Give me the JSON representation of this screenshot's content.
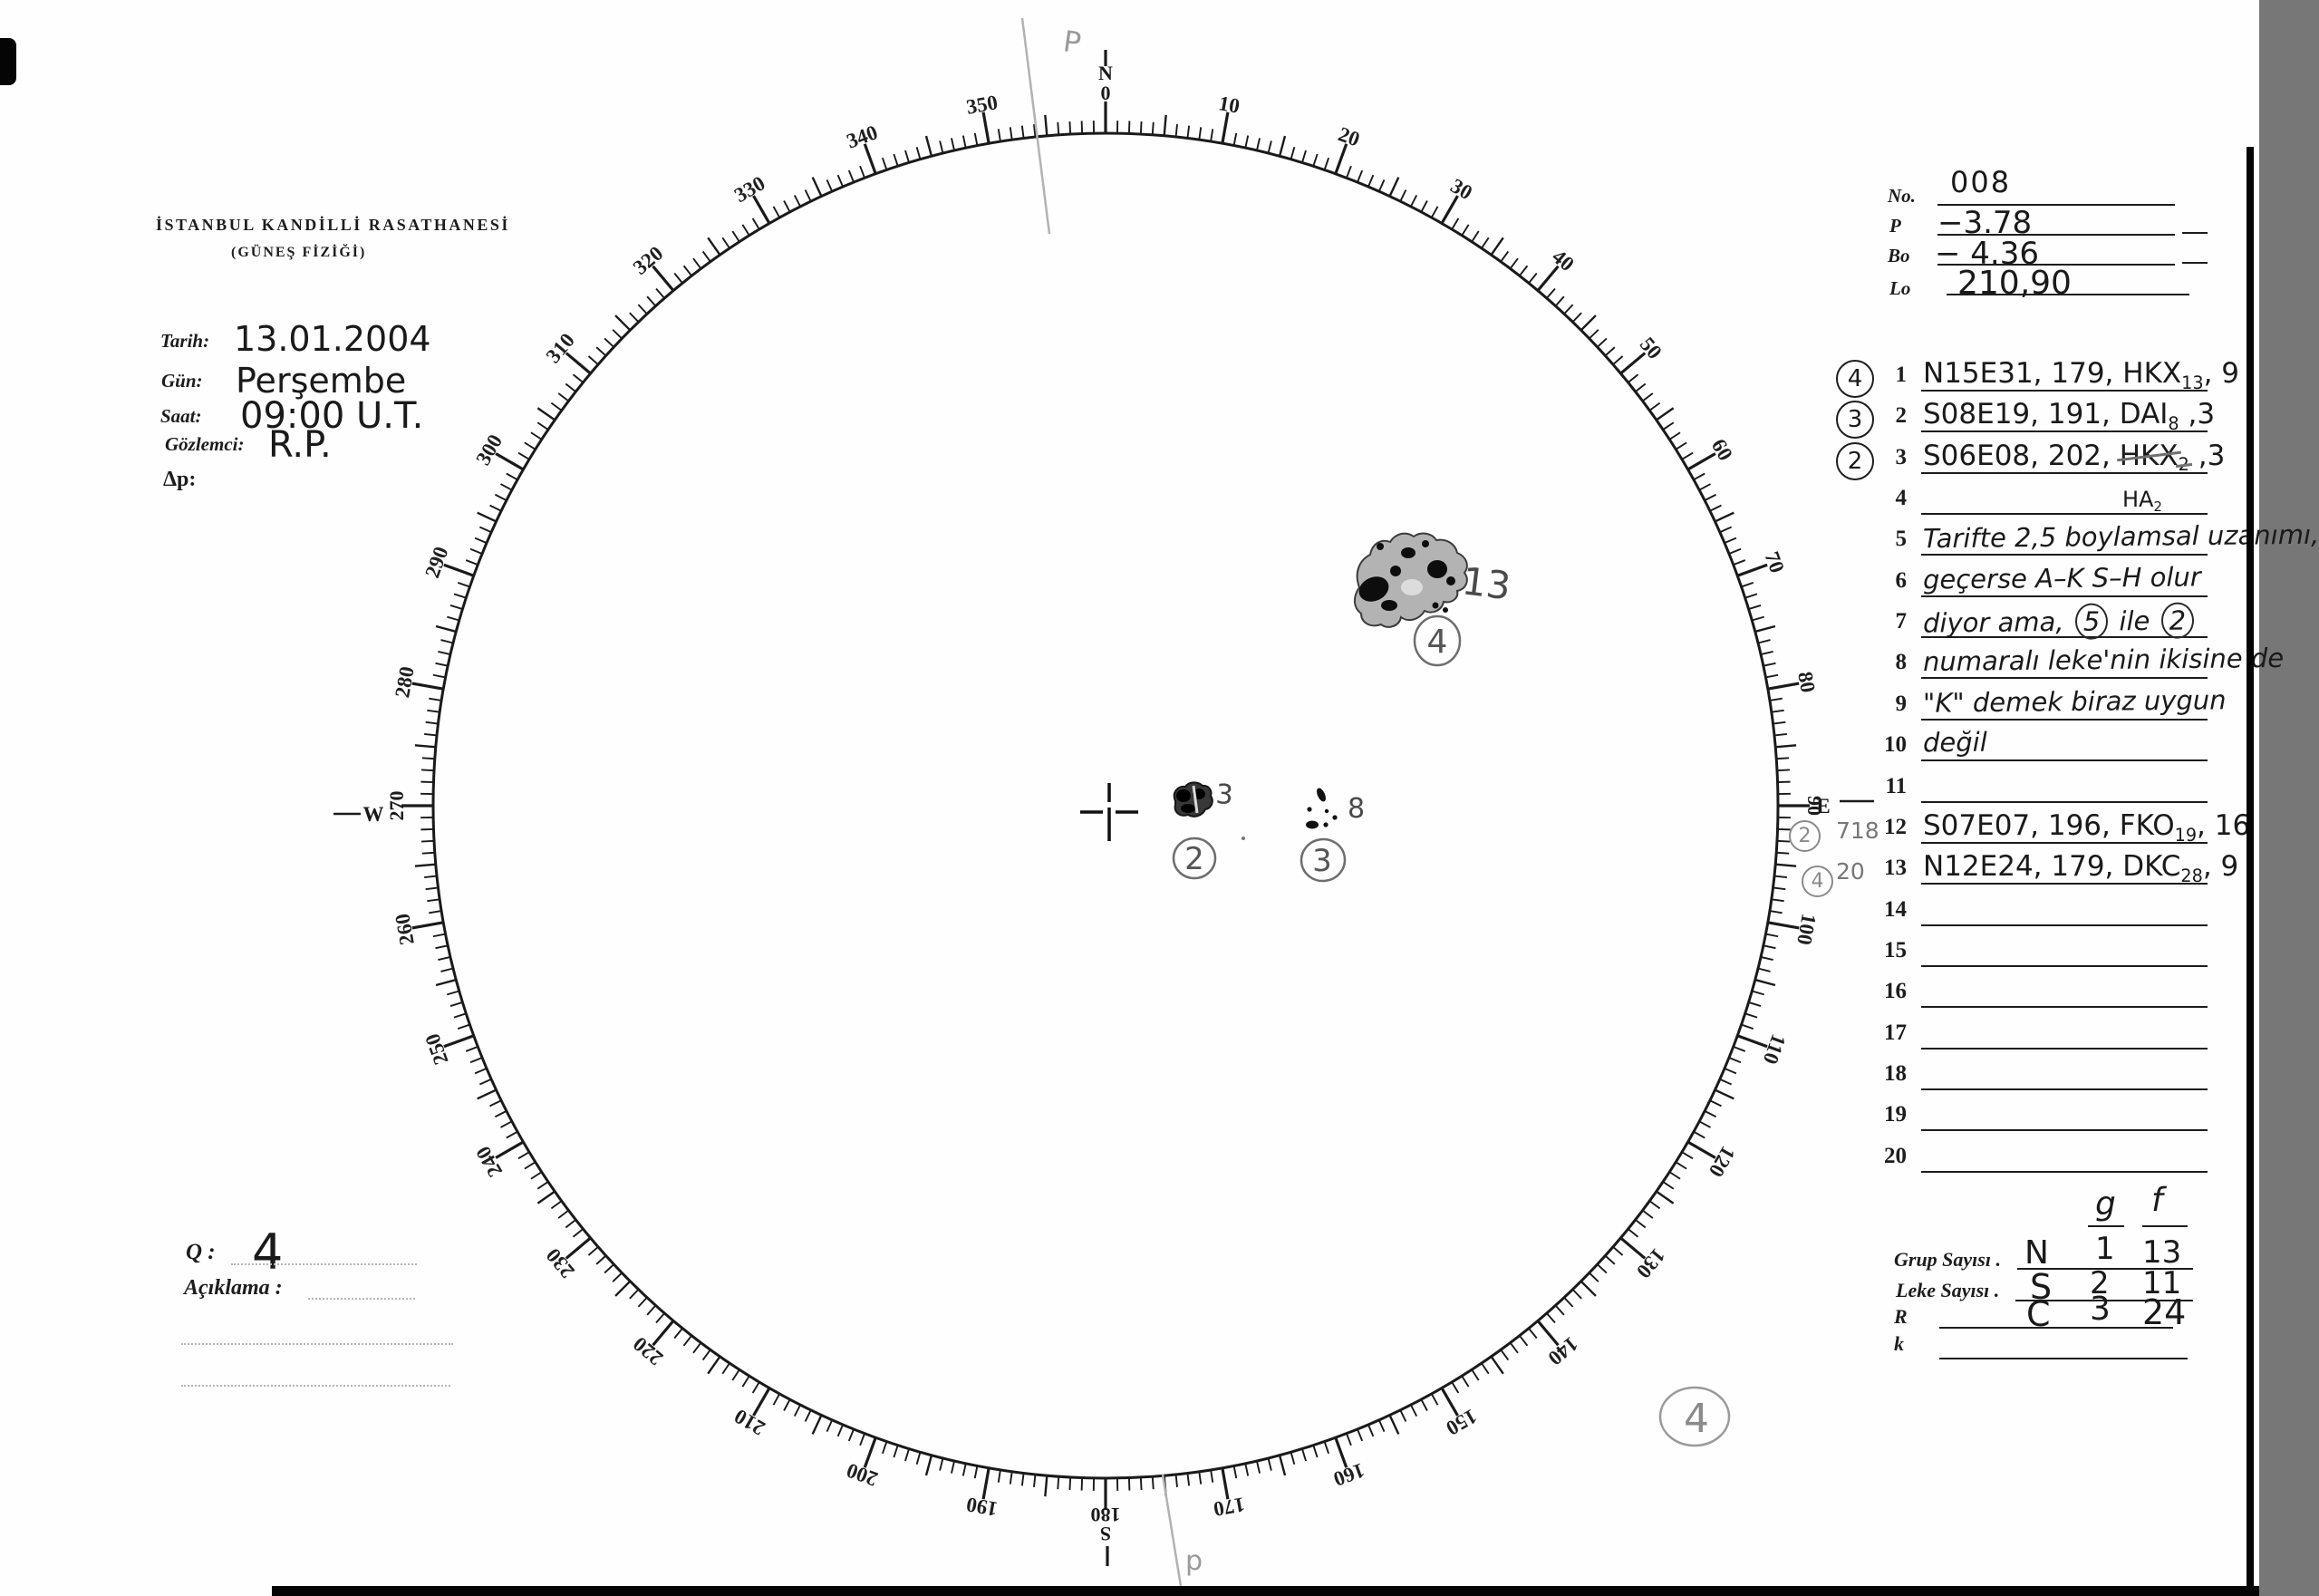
{
  "observatory": {
    "title": "İSTANBUL KANDİLLİ RASATHANESİ",
    "subtitle": "(GÜNEŞ FİZİĞİ)"
  },
  "fields": [
    {
      "label": "Tarih:",
      "value": "13.01.2004"
    },
    {
      "label": "Gün:",
      "value": "Perşembe"
    },
    {
      "label": "Saat:",
      "value": "09:00 U.T."
    },
    {
      "label": "Gözlemci:",
      "value": "R.P."
    },
    {
      "label": "Δp:",
      "value": ""
    }
  ],
  "ephemeris": {
    "rows": [
      {
        "label": "No.",
        "value": "008"
      },
      {
        "label": "P",
        "value": "−3.78"
      },
      {
        "label": "Bo",
        "value": "− 4.36"
      },
      {
        "label": "Lo",
        "value": "210,90"
      }
    ]
  },
  "dial": {
    "cardinals": {
      "n": "N",
      "e": "E",
      "s": "S",
      "w": "W"
    },
    "cardinal_degrees": {
      "n": "0",
      "e": "90",
      "s": "180",
      "w": "270"
    },
    "degree_labels": [
      10,
      20,
      30,
      40,
      50,
      60,
      70,
      80,
      100,
      110,
      120,
      130,
      140,
      150,
      160,
      170,
      190,
      200,
      210,
      220,
      230,
      240,
      250,
      260,
      280,
      290,
      300,
      310,
      320,
      330,
      340,
      350
    ],
    "pencil_top_label": "P",
    "pencil_bottom_label": "p"
  },
  "sunspots": {
    "groups": [
      {
        "circled_number": "2",
        "spot_count_label": "3"
      },
      {
        "circled_number": "3",
        "spot_count_label": "8"
      },
      {
        "circled_number": "4",
        "spot_count_label": "13"
      }
    ],
    "page_mark_circled": "4"
  },
  "group_list": {
    "rows": [
      {
        "n": "1",
        "circled": "4",
        "segments": [
          {
            "t": "N15E31, 179, HKX"
          },
          {
            "t": "13",
            "sub": true
          },
          {
            "t": ", 9"
          }
        ]
      },
      {
        "n": "2",
        "circled": "3",
        "segments": [
          {
            "t": "S08E19, 191, DAI"
          },
          {
            "t": "8",
            "sub": true
          },
          {
            "t": " ,3"
          }
        ]
      },
      {
        "n": "3",
        "circled": "2",
        "segments": [
          {
            "t": "S06E08, 202, "
          },
          {
            "t": "HKX",
            "strike": true
          },
          {
            "t": "2",
            "sub": true,
            "strike": true
          },
          {
            "t": " ,3"
          }
        ]
      },
      {
        "n": "4",
        "above": [
          {
            "t": "HA"
          },
          {
            "t": "2",
            "sub": true
          }
        ]
      },
      {
        "n": "5",
        "style": "note",
        "segments": [
          {
            "t": "Tarifte 2,5 boylamsal uzanımı,"
          }
        ]
      },
      {
        "n": "6",
        "style": "note",
        "segments": [
          {
            "t": "geçerse A–K  S–H olur"
          }
        ]
      },
      {
        "n": "7",
        "style": "note",
        "segments": [
          {
            "t": "diyor ama, "
          },
          {
            "t": "5",
            "circled": true
          },
          {
            "t": " ile "
          },
          {
            "t": "2",
            "circled": true
          }
        ]
      },
      {
        "n": "8",
        "style": "note",
        "segments": [
          {
            "t": "numaralı leke'nin ikisine de"
          }
        ]
      },
      {
        "n": "9",
        "style": "note",
        "segments": [
          {
            "t": "\"K\" demek biraz uygun"
          }
        ]
      },
      {
        "n": "10",
        "style": "note",
        "segments": [
          {
            "t": "değil"
          }
        ]
      },
      {
        "n": "11"
      },
      {
        "n": "12",
        "circled": "2",
        "prefix": "718",
        "segments": [
          {
            "t": "S07E07, 196, FKO"
          },
          {
            "t": "19",
            "sub": true
          },
          {
            "t": ", 16"
          }
        ]
      },
      {
        "n": "13",
        "circled": "4",
        "prefix": "20",
        "segments": [
          {
            "t": "N12E24, 179, DKC"
          },
          {
            "t": "28",
            "sub": true
          },
          {
            "t": ", 9"
          }
        ]
      },
      {
        "n": "14"
      },
      {
        "n": "15"
      },
      {
        "n": "16"
      },
      {
        "n": "17"
      },
      {
        "n": "18"
      },
      {
        "n": "19"
      },
      {
        "n": "20"
      }
    ]
  },
  "summary": {
    "col_g": "g",
    "col_f": "f",
    "rows": [
      {
        "label": "Grup Sayısı .",
        "letter": "N",
        "g": "1",
        "f": "13"
      },
      {
        "label": "Leke Sayısı .",
        "letter": "S",
        "g": "2",
        "f": "11"
      },
      {
        "label": "R",
        "letter": "C",
        "g": "3",
        "f": "24"
      },
      {
        "label": "k",
        "letter": "",
        "g": "",
        "f": ""
      }
    ]
  },
  "quality": {
    "q_label": "Q :",
    "q_value": "4",
    "aciklama_label": "Açıklama :"
  }
}
